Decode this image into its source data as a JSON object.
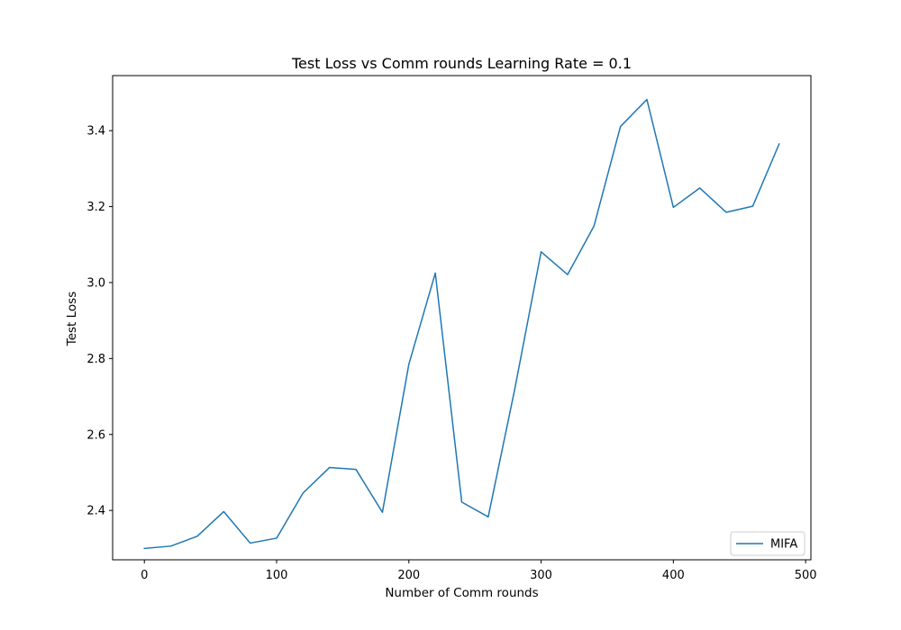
{
  "chart_data": {
    "type": "line",
    "title": "Test Loss vs Comm rounds Learning Rate = 0.1",
    "xlabel": "Number of Comm rounds",
    "ylabel": "Test Loss",
    "xlim": [
      -24,
      504
    ],
    "ylim": [
      2.27,
      3.545
    ],
    "xticks": [
      0,
      100,
      200,
      300,
      400,
      500
    ],
    "yticks": [
      2.4,
      2.6,
      2.8,
      3.0,
      3.2,
      3.4
    ],
    "xtick_labels": [
      "0",
      "100",
      "200",
      "300",
      "400",
      "500"
    ],
    "ytick_labels": [
      "2.4",
      "2.6",
      "2.8",
      "3.0",
      "3.2",
      "3.4"
    ],
    "grid": false,
    "legend_position": "lower-right",
    "series": [
      {
        "name": "MIFA",
        "color": "#1f77b4",
        "x": [
          0,
          20,
          40,
          60,
          80,
          100,
          120,
          140,
          160,
          180,
          200,
          220,
          240,
          260,
          280,
          300,
          320,
          340,
          360,
          380,
          400,
          420,
          440,
          460,
          480
        ],
        "y": [
          2.3,
          2.306,
          2.332,
          2.397,
          2.314,
          2.327,
          2.446,
          2.513,
          2.508,
          2.395,
          2.785,
          3.025,
          2.422,
          2.383,
          2.718,
          3.081,
          3.021,
          3.149,
          3.411,
          3.482,
          3.198,
          3.249,
          3.185,
          3.201,
          3.365
        ]
      }
    ]
  }
}
